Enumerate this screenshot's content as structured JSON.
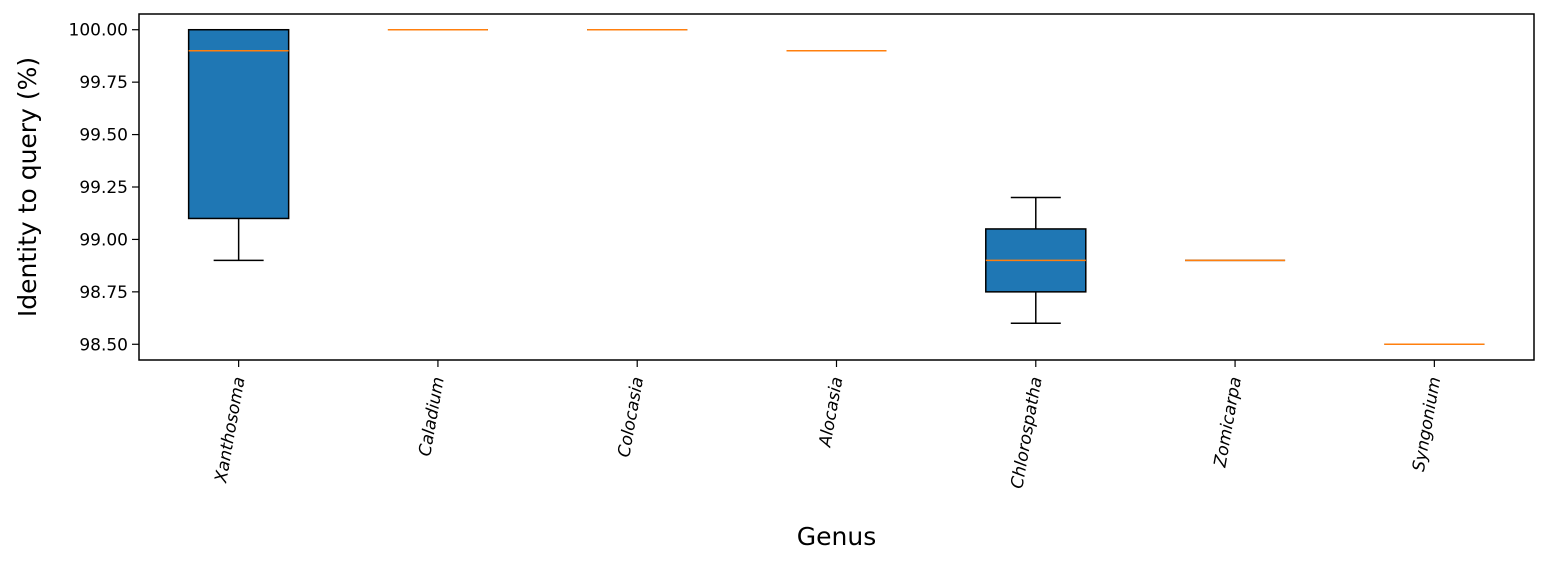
{
  "chart_data": {
    "type": "box",
    "xlabel": "Genus",
    "ylabel": "Identity to query (%)",
    "ylim": [
      98.425,
      100.075
    ],
    "yticks": [
      "98.50",
      "98.75",
      "99.00",
      "99.25",
      "99.50",
      "99.75",
      "100.00"
    ],
    "grid": false,
    "colors": {
      "box_fill": "#1f77b4",
      "median": "#ff7f0e",
      "whisker": "#000000"
    },
    "categories": [
      "Xanthosoma",
      "Caladium",
      "Colocasia",
      "Alocasia",
      "Chlorospatha",
      "Zomicarpa",
      "Syngonium"
    ],
    "boxes": [
      {
        "genus": "Xanthosoma",
        "whislo": 98.9,
        "q1": 99.1,
        "med": 99.9,
        "q3": 100.0,
        "whishi": 100.0
      },
      {
        "genus": "Caladium",
        "whislo": 100.0,
        "q1": 100.0,
        "med": 100.0,
        "q3": 100.0,
        "whishi": 100.0
      },
      {
        "genus": "Colocasia",
        "whislo": 100.0,
        "q1": 100.0,
        "med": 100.0,
        "q3": 100.0,
        "whishi": 100.0
      },
      {
        "genus": "Alocasia",
        "whislo": 99.9,
        "q1": 99.9,
        "med": 99.9,
        "q3": 99.9,
        "whishi": 99.9
      },
      {
        "genus": "Chlorospatha",
        "whislo": 98.6,
        "q1": 98.75,
        "med": 98.9,
        "q3": 99.05,
        "whishi": 99.2
      },
      {
        "genus": "Zomicarpa",
        "whislo": 98.9,
        "q1": 98.9,
        "med": 98.9,
        "q3": 98.9,
        "whishi": 98.9
      },
      {
        "genus": "Syngonium",
        "whislo": 98.5,
        "q1": 98.5,
        "med": 98.5,
        "q3": 98.5,
        "whishi": 98.5
      }
    ]
  }
}
